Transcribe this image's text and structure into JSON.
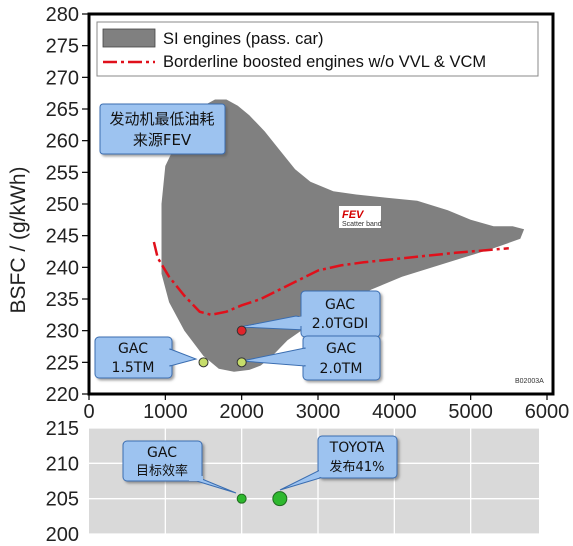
{
  "chart_data": [
    {
      "type": "area",
      "ylabel": "BSFC / (g/kWh)",
      "xlim": [
        0,
        6000
      ],
      "ylim": [
        220,
        280
      ],
      "x_ticks": [
        "0",
        "1000",
        "2000",
        "3000",
        "4000",
        "5000",
        "6000"
      ],
      "y_ticks": [
        "220",
        "225",
        "230",
        "235",
        "240",
        "245",
        "250",
        "255",
        "260",
        "265",
        "270",
        "275",
        "280"
      ],
      "legend_position": "top",
      "legend": [
        "SI engines (pass. car)",
        "Borderline boosted engines w/o VVL & VCM"
      ],
      "inset_label": {
        "line1": "发动机最低油耗",
        "line2": "来源FEV"
      },
      "fev_logo": "FEV",
      "fev_sub": "Scatter band",
      "figure_code": "B02003A",
      "scatter_band": [
        [
          950,
          250
        ],
        [
          1000,
          256
        ],
        [
          1200,
          261
        ],
        [
          1400,
          264
        ],
        [
          1500,
          265.5
        ],
        [
          1650,
          266.5
        ],
        [
          1800,
          266.5
        ],
        [
          1950,
          265.5
        ],
        [
          2100,
          264
        ],
        [
          2300,
          261.5
        ],
        [
          2500,
          258.5
        ],
        [
          2700,
          255.5
        ],
        [
          2900,
          253.5
        ],
        [
          3200,
          252
        ],
        [
          3500,
          251.5
        ],
        [
          3900,
          251
        ],
        [
          4300,
          250.5
        ],
        [
          4700,
          249
        ],
        [
          5000,
          247.5
        ],
        [
          5300,
          246.5
        ],
        [
          5550,
          246.5
        ],
        [
          5700,
          246
        ],
        [
          5650,
          244.5
        ],
        [
          5300,
          243
        ],
        [
          4900,
          241.5
        ],
        [
          4500,
          240
        ],
        [
          4100,
          238.5
        ],
        [
          3700,
          236.5
        ],
        [
          3300,
          234
        ],
        [
          2900,
          231
        ],
        [
          2600,
          228.5
        ],
        [
          2400,
          226
        ],
        [
          2250,
          224.5
        ],
        [
          2100,
          223.8
        ],
        [
          1900,
          223.5
        ],
        [
          1700,
          224
        ],
        [
          1500,
          226
        ],
        [
          1250,
          230
        ],
        [
          1050,
          234.5
        ],
        [
          950,
          239
        ]
      ],
      "series": [
        {
          "name": "Borderline boosted engines w/o VVL & VCM",
          "color": "#e0101b",
          "points": [
            [
              850,
              244
            ],
            [
              900,
              241.5
            ],
            [
              1050,
              238.5
            ],
            [
              1250,
              235.5
            ],
            [
              1450,
              233
            ],
            [
              1600,
              232.5
            ],
            [
              1800,
              233
            ],
            [
              2000,
              234
            ],
            [
              2250,
              235
            ],
            [
              2500,
              236.5
            ],
            [
              2750,
              238
            ],
            [
              3000,
              239.5
            ],
            [
              3300,
              240.3
            ],
            [
              3600,
              240.8
            ],
            [
              4000,
              241.3
            ],
            [
              4400,
              241.8
            ],
            [
              4800,
              242.3
            ],
            [
              5200,
              242.7
            ],
            [
              5500,
              243
            ]
          ]
        }
      ],
      "points": [
        {
          "label_line1": "GAC",
          "label_line2": "2.0TGDI",
          "x": 2000,
          "y": 230,
          "color": "#e0242a"
        },
        {
          "label_line1": "GAC",
          "label_line2": "1.5TM",
          "x": 1500,
          "y": 225,
          "color": "#c6dd6a"
        },
        {
          "label_line1": "GAC",
          "label_line2": "2.0TM",
          "x": 2000,
          "y": 225,
          "color": "#c6dd6a"
        }
      ]
    },
    {
      "type": "scatter",
      "xlim": [
        0,
        6000
      ],
      "ylim": [
        200,
        215
      ],
      "y_ticks": [
        "200",
        "205",
        "210",
        "215"
      ],
      "points": [
        {
          "label_line1": "GAC",
          "label_line2": "目标效率",
          "x": 2000,
          "y": 205,
          "color": "#2eb82e",
          "size": "small"
        },
        {
          "label_line1": "TOYOTA",
          "label_line2": "发布41%",
          "x": 2500,
          "y": 205,
          "color": "#2eb82e",
          "size": "large"
        }
      ]
    }
  ]
}
